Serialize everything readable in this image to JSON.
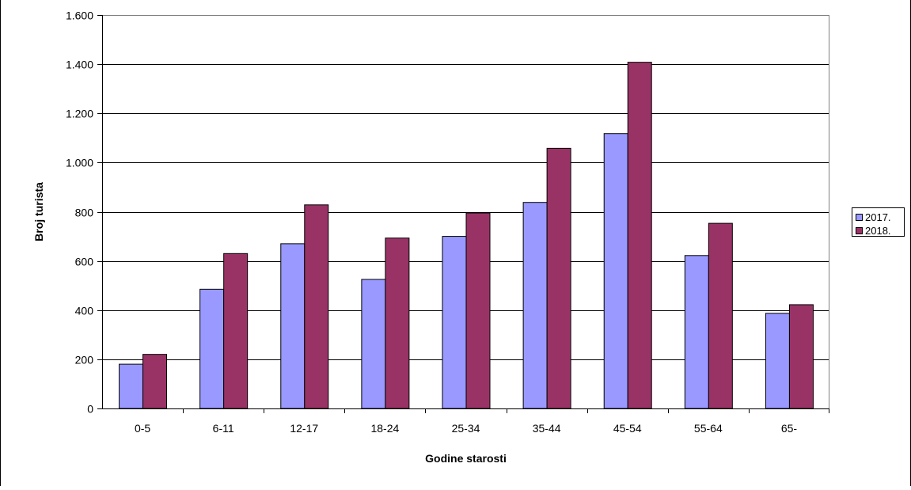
{
  "chart_data": {
    "type": "bar",
    "title": "",
    "xlabel": "Godine starosti",
    "ylabel": "Broj turista",
    "categories": [
      "0-5",
      "6-11",
      "12-17",
      "18-24",
      "25-34",
      "35-44",
      "45-54",
      "55-64",
      "65-"
    ],
    "series": [
      {
        "name": "2017.",
        "color": "#9999ff",
        "values": [
          180,
          485,
          670,
          525,
          700,
          838,
          1118,
          622,
          387
        ]
      },
      {
        "name": "2018.",
        "color": "#993366",
        "values": [
          220,
          630,
          828,
          693,
          795,
          1058,
          1408,
          753,
          422
        ]
      }
    ],
    "ylim": [
      0,
      1600
    ],
    "yticks": [
      0,
      200,
      400,
      600,
      800,
      1000,
      1200,
      1400,
      1600
    ],
    "ytick_labels": [
      "0",
      "200",
      "400",
      "600",
      "800",
      "1.000",
      "1.200",
      "1.400",
      "1.600"
    ],
    "grid": true,
    "legend_position": "right"
  }
}
